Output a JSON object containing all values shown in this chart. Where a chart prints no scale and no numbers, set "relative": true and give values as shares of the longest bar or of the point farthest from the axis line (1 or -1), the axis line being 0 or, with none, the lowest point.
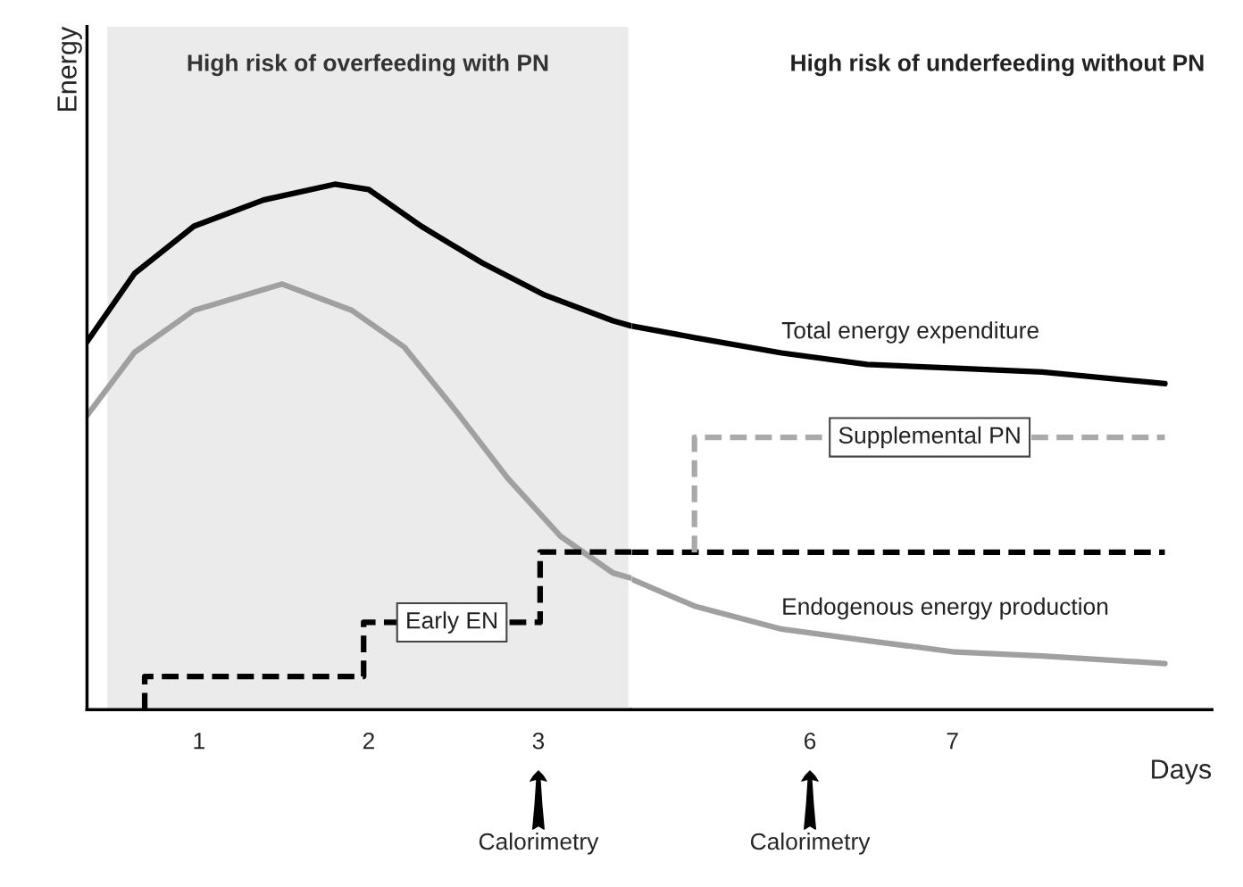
{
  "chart_data": [
    {
      "type": "line",
      "relative": true,
      "ylabel": "Energy",
      "xlim": [
        0.34,
        3.55
      ],
      "xticks": [
        1,
        2,
        3
      ],
      "series": [
        {
          "color": "#000000",
          "line_style": "solid",
          "x": [
            0.34,
            0.62,
            0.97,
            1.38,
            1.8,
            2.0,
            2.31,
            2.67,
            3.03,
            3.44,
            3.55
          ],
          "values": [
            0.7,
            0.83,
            0.92,
            0.97,
            1.0,
            0.99,
            0.92,
            0.85,
            0.79,
            0.74,
            0.73
          ]
        },
        {
          "color": "#a0a0a0",
          "line_style": "solid",
          "x": [
            0.34,
            0.62,
            0.97,
            1.49,
            1.9,
            2.21,
            2.51,
            2.82,
            3.13,
            3.44,
            3.55
          ],
          "values": [
            0.56,
            0.68,
            0.76,
            0.81,
            0.76,
            0.69,
            0.57,
            0.44,
            0.33,
            0.26,
            0.25
          ]
        },
        {
          "name": "Early EN",
          "type": "step",
          "color": "#000000",
          "line_style": "dashed",
          "x": [
            0.68,
            0.68,
            1.97,
            3.01,
            3.55
          ],
          "values": [
            0,
            0.063,
            0.166,
            0.3,
            0.3
          ]
        }
      ],
      "bands": [
        {
          "axis": "x",
          "from": 0.46,
          "to": 3.53,
          "label": "High risk of overfeeding with PN",
          "color": "#ebebeb"
        }
      ],
      "annotations": [
        "Calorimetry"
      ],
      "legend": false,
      "grid": false
    },
    {
      "type": "line",
      "relative": true,
      "title": "High risk of underfeeding without PN",
      "xlabel": "Days",
      "xlim": [
        4.75,
        8.82
      ],
      "xticks": [
        6,
        7
      ],
      "tick_labels": "x",
      "series": [
        {
          "name": "Total energy expenditure",
          "color": "#000000",
          "line_style": "solid",
          "x": [
            4.75,
            5.19,
            5.8,
            6.4,
            7.02,
            7.63,
            8.49
          ],
          "values": [
            1.0,
            0.97,
            0.93,
            0.9,
            0.89,
            0.88,
            0.85
          ]
        },
        {
          "name": "Endogenous energy production",
          "color": "#a0a0a0",
          "line_style": "solid",
          "x": [
            4.75,
            5.19,
            5.8,
            6.4,
            7.02,
            7.63,
            8.49
          ],
          "values": [
            0.34,
            0.27,
            0.21,
            0.18,
            0.15,
            0.14,
            0.12
          ]
        },
        {
          "type": "step",
          "color": "#000000",
          "line_style": "dashed",
          "x": [
            4.75,
            8.49
          ],
          "values": [
            0.41,
            0.41
          ]
        },
        {
          "name": "Supplemental PN",
          "type": "step",
          "color": "#aaaaaa",
          "line_style": "dashed",
          "x": [
            5.19,
            5.19,
            8.49
          ],
          "values": [
            0.41,
            0.71,
            0.71
          ]
        }
      ],
      "annotations": [
        "Calorimetry"
      ],
      "legend": false,
      "grid": false
    }
  ]
}
